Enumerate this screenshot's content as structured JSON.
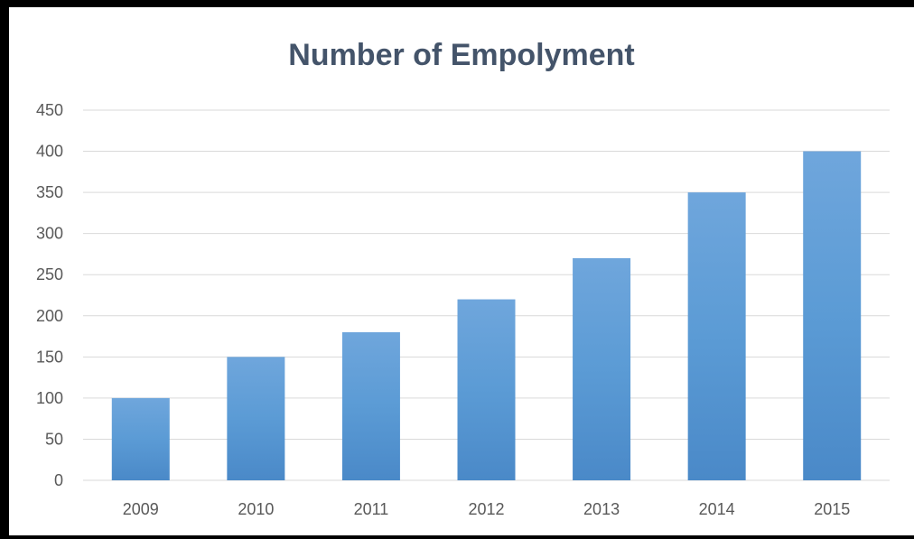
{
  "chart_data": {
    "type": "bar",
    "title": "Number of Empolyment",
    "categories": [
      "2009",
      "2010",
      "2011",
      "2012",
      "2013",
      "2014",
      "2015"
    ],
    "values": [
      100,
      150,
      180,
      220,
      270,
      350,
      400
    ],
    "xlabel": "",
    "ylabel": "",
    "ylim": [
      0,
      450
    ],
    "yticks": [
      "0",
      "50",
      "100",
      "150",
      "200",
      "250",
      "300",
      "350",
      "400",
      "450"
    ],
    "grid": true,
    "legend": "none",
    "colors": {
      "bar_top": "#6fa6dc",
      "bar_mid": "#5b9bd5",
      "bar_bottom": "#4a89c8",
      "title": "#44546a",
      "gridline": "#d9d9d9",
      "tick_text": "#595959"
    }
  }
}
